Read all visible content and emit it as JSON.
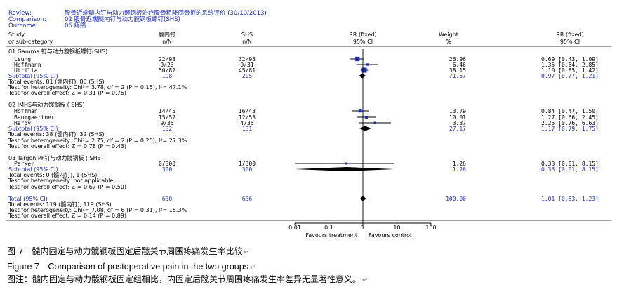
{
  "colors": {
    "header_text": "#1f2fb3",
    "body_text": "#000000",
    "marker": "#1f2fb3",
    "diamond": "#000000",
    "line": "#000000"
  },
  "header": {
    "review_label": "Review:",
    "review_value": "股骨近端髓内钉与动力髋钢板治疗股骨粗隆间骨折的系统评价 (30/10/2013)",
    "comparison_label": "Comparison:",
    "comparison_value": "02 股骨近端髓内钉与动力髋钢板螺钉(SHS)",
    "outcome_label": "Outcome:",
    "outcome_value": "06 疼痛"
  },
  "columns": {
    "study": [
      "Study",
      "or sub-category"
    ],
    "group1": [
      "髓内钉",
      "n/N"
    ],
    "group2": [
      "SHS",
      "n/N"
    ],
    "rr_plot": [
      "RR (fixed)",
      "95% CI"
    ],
    "weight": [
      "Weight",
      "%"
    ],
    "rr_text": [
      "RR (fixed)",
      "95% CI"
    ]
  },
  "chart_data": {
    "type": "forest",
    "xscale": "log",
    "xlim": [
      0.01,
      100
    ],
    "xticks": [
      "0.01",
      "0.1",
      "1",
      "10",
      "100"
    ],
    "xtick_values": [
      0.01,
      0.1,
      1,
      10,
      100
    ],
    "favours_left": "Favours treatment",
    "favours_right": "Favours control",
    "subgroups": [
      {
        "title": "01 Gamma 钉与动力髋钢板螺钉(SHS)",
        "studies": [
          {
            "name": "Leung",
            "g1": "22/93",
            "g2": "32/93",
            "weight": "26.96",
            "ci_text": "0.69 [0.43, 1.09]",
            "rr": 0.69,
            "lo": 0.43,
            "hi": 1.09
          },
          {
            "name": "Hoffmann",
            "g1": "9/23",
            "g2": "9/31",
            "weight": "6.46",
            "ci_text": "1.35 [0.64, 2.85]",
            "rr": 1.35,
            "lo": 0.64,
            "hi": 2.85
          },
          {
            "name": "Utrilla",
            "g1": "50/82",
            "g2": "45/81",
            "weight": "38.15",
            "ci_text": "1.10 [0.85, 1.42]",
            "rr": 1.1,
            "lo": 0.85,
            "hi": 1.42
          }
        ],
        "subtotal": {
          "label": "Subtotal (95% CI)",
          "n1": "198",
          "n2": "205",
          "weight": "71.57",
          "ci_text": "0.97 [0.77, 1.21]",
          "rr": 0.97,
          "lo": 0.77,
          "hi": 1.21
        },
        "events": "Total events: 81 (髓内钉), 86 (SHS)",
        "heterogeneity": "Test for heterogeneity: Chi²= 3.78, df = 2 (P = 0.15), I²= 47.1%",
        "overall": "Test for overall effect: Z = 0.31 (P = 0.76)"
      },
      {
        "title": "02 IMHS与动力髋钢板 ( SHS)",
        "studies": [
          {
            "name": "Hoffman",
            "g1": "14/45",
            "g2": "16/43",
            "weight": "13.79",
            "ci_text": "0.84 [0.47, 1.50]",
            "rr": 0.84,
            "lo": 0.47,
            "hi": 1.5
          },
          {
            "name": "Baumgaertner",
            "g1": "15/52",
            "g2": "12/53",
            "weight": "10.01",
            "ci_text": "1.27 [0.66, 2.45]",
            "rr": 1.27,
            "lo": 0.66,
            "hi": 2.45
          },
          {
            "name": "Hardy",
            "g1": "9/35",
            "g2": "4/35",
            "weight": "3.37",
            "ci_text": "2.25 [0.76, 6.63]",
            "rr": 2.25,
            "lo": 0.76,
            "hi": 6.63
          }
        ],
        "subtotal": {
          "label": "Subtotal (95% CI)",
          "n1": "132",
          "n2": "131",
          "weight": "27.17",
          "ci_text": "1.17 [0.79, 1.75]",
          "rr": 1.17,
          "lo": 0.79,
          "hi": 1.75
        },
        "events": "Total events: 38 (髓内钉), 32 (SHS)",
        "heterogeneity": "Test for heterogeneity: Chi²= 2.75, df = 2 (P = 0.25), I²= 27.3%",
        "overall": "Test for overall effect: Z = 0.78 (P = 0.43)"
      },
      {
        "title": "03 Targon PF钉与动力髋钢板 ( SHS)",
        "studies": [
          {
            "name": "Parker",
            "g1": "0/300",
            "g2": "1/300",
            "weight": "1.26",
            "ci_text": "0.33 [0.01, 8.15]",
            "rr": 0.33,
            "lo": 0.01,
            "hi": 8.15
          }
        ],
        "subtotal": {
          "label": "Subtotal (95% CI)",
          "n1": "300",
          "n2": "300",
          "weight": "1.26",
          "ci_text": "0.33 [0.01, 8.15]",
          "rr": 0.33,
          "lo": 0.01,
          "hi": 8.15
        },
        "events": "Total events: 0 (髓内钉), 1 (SHS)",
        "heterogeneity": "Test for heterogeneity: not applicable",
        "overall": "Test for overall effect: Z = 0.67 (P = 0.50)"
      }
    ],
    "total": {
      "label": "Total (95% CI)",
      "n1": "630",
      "n2": "636",
      "weight": "100.00",
      "ci_text": "1.01 [0.83, 1.23]",
      "rr": 1.01,
      "lo": 0.83,
      "hi": 1.23,
      "events": "Total events: 119 (髓内钉), 119 (SHS)",
      "heterogeneity": "Test for heterogeneity: Chi²= 7.08, df = 6 (P = 0.31), I²= 15.3%",
      "overall": "Test for overall effect: Z = 0.14 (P = 0.89)"
    }
  },
  "captions": {
    "fig_zh": "图 7　髓内固定与动力髋钢板固定后髋关节周围疼痛发生率比较",
    "fig_en": "Figure 7　Comparison of postoperative pain in the two groups",
    "note_zh": "图注：髓内固定与动力髋钢板固定组相比，内固定后髋关节周围疼痛发生率差异无显著性意义。",
    "para_mark": "↵"
  }
}
